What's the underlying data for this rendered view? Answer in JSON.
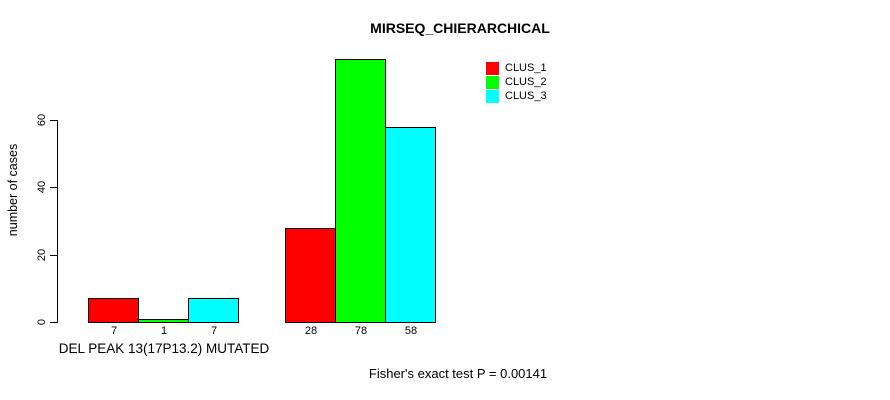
{
  "chart_data": {
    "type": "bar",
    "title": "MIRSEQ_CHIERARCHICAL",
    "xlabel": "",
    "ylabel": "number of cases",
    "ylim": [
      0,
      60
    ],
    "yticks": [
      0,
      20,
      40,
      60
    ],
    "grid": false,
    "legend_position": "top-right",
    "series": [
      {
        "name": "CLUS_1",
        "color": "#ff0000"
      },
      {
        "name": "CLUS_2",
        "color": "#00ff00"
      },
      {
        "name": "CLUS_3",
        "color": "#00ffff"
      }
    ],
    "groups": [
      {
        "label": "DEL PEAK 13(17P13.2) MUTATED",
        "values": [
          7,
          1,
          7
        ]
      },
      {
        "label": "",
        "values": [
          28,
          78,
          58
        ]
      }
    ],
    "annotation": "Fisher's exact test P = 0.00141"
  },
  "colors": {
    "background": "#ffffff",
    "axis": "#000000",
    "bar_border": "#000000",
    "text": "#000000"
  }
}
